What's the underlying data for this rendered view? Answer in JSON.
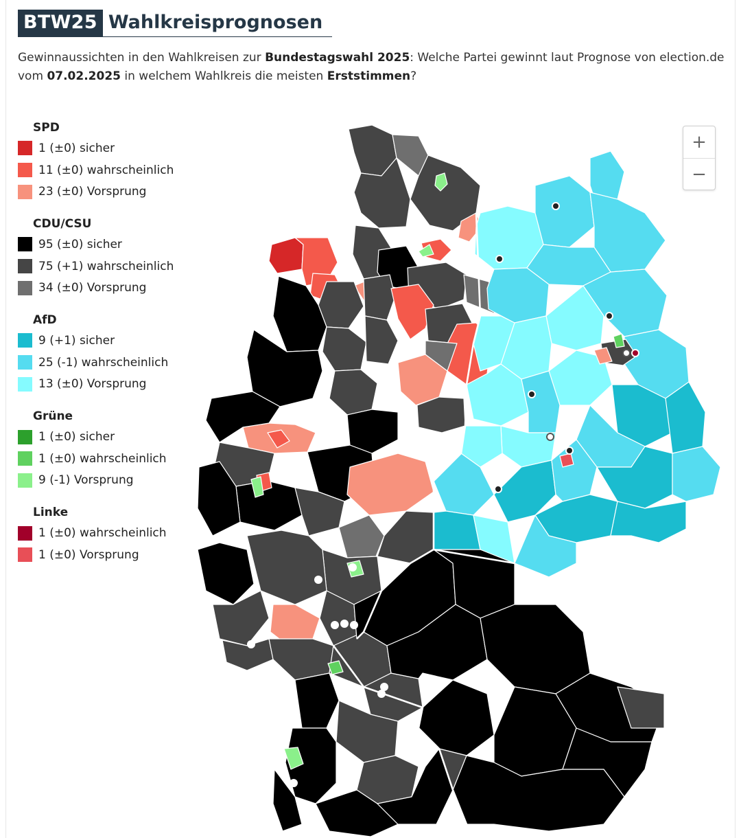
{
  "header": {
    "badge": "BTW25",
    "title": "Wahlkreisprognosen"
  },
  "subtitle": {
    "p1": "Gewinnaussichten in den Wahlkreisen zur ",
    "b1": "Bundestagswahl 2025",
    "p2": ": Welche Partei gewinnt laut Prognose von election.de vom ",
    "b2": "07.02.2025",
    "p3": " in welchem Wahlkreis die meisten ",
    "b3": "Erststimmen",
    "p4": "?"
  },
  "legend": [
    {
      "party": "SPD",
      "items": [
        {
          "color": "#d62728",
          "label": "1 (±0) sicher"
        },
        {
          "color": "#f4594b",
          "label": "11 (±0) wahrscheinlich"
        },
        {
          "color": "#f7927d",
          "label": "23 (±0) Vorsprung"
        }
      ]
    },
    {
      "party": "CDU/CSU",
      "items": [
        {
          "color": "#000000",
          "label": "95 (±0) sicher"
        },
        {
          "color": "#454545",
          "label": "75 (+1) wahrscheinlich"
        },
        {
          "color": "#6f6f6f",
          "label": "34 (±0) Vorsprung"
        }
      ]
    },
    {
      "party": "AfD",
      "items": [
        {
          "color": "#1bbccf",
          "label": "9 (+1) sicher"
        },
        {
          "color": "#55dcf0",
          "label": "25 (-1) wahrscheinlich"
        },
        {
          "color": "#85fbff",
          "label": "13 (±0) Vorsprung"
        }
      ]
    },
    {
      "party": "Grüne",
      "items": [
        {
          "color": "#2ca02c",
          "label": "1 (±0) sicher"
        },
        {
          "color": "#5fd15f",
          "label": "1 (±0) wahrscheinlich"
        },
        {
          "color": "#8bf08b",
          "label": "9 (-1) Vorsprung"
        }
      ]
    },
    {
      "party": "Linke",
      "items": [
        {
          "color": "#a1002a",
          "label": "1 (±0) wahrscheinlich"
        },
        {
          "color": "#e84f57",
          "label": "1 (±0) Vorsprung"
        }
      ]
    }
  ],
  "zoom": {
    "in": "+",
    "out": "−"
  }
}
